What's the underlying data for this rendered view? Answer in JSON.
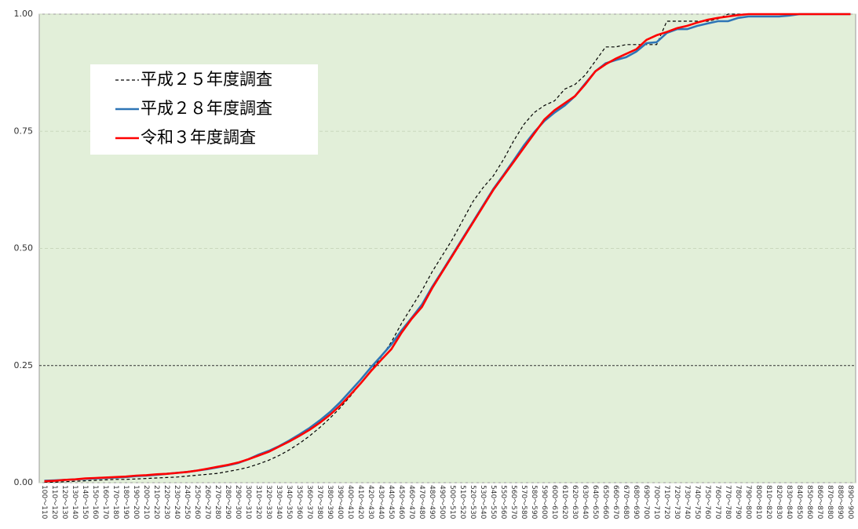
{
  "chart_data": {
    "type": "line",
    "categories": [
      "100～110",
      "110～120",
      "120～130",
      "130～140",
      "140～150",
      "150～160",
      "160～170",
      "170～180",
      "180～190",
      "190～200",
      "200～210",
      "210～220",
      "220～230",
      "230～240",
      "240～250",
      "250～260",
      "260～270",
      "270～280",
      "280～290",
      "290～300",
      "300～310",
      "310～320",
      "320～330",
      "330～340",
      "340～350",
      "350～360",
      "360～370",
      "370～380",
      "380～390",
      "390～400",
      "400～410",
      "410～420",
      "420～430",
      "430～440",
      "440～450",
      "450～460",
      "460～470",
      "470～480",
      "480～490",
      "490～500",
      "500～510",
      "510～520",
      "520～530",
      "530～540",
      "540～550",
      "550～560",
      "560～570",
      "570～580",
      "580～590",
      "590～600",
      "600～610",
      "610～620",
      "620～630",
      "630～640",
      "640～650",
      "650～660",
      "660～670",
      "670～680",
      "680～690",
      "690～700",
      "700～710",
      "710～720",
      "720～730",
      "730～740",
      "740～750",
      "750～760",
      "760～770",
      "770～780",
      "780～790",
      "790～800",
      "800～810",
      "810～820",
      "820～830",
      "830～840",
      "840～850",
      "850～860",
      "860～870",
      "870～880",
      "880～890",
      "890～900"
    ],
    "series": [
      {
        "name": "平成２５年度調査",
        "color": "#000000",
        "line_style": "dashed",
        "values": [
          0.001,
          0.001,
          0.002,
          0.003,
          0.004,
          0.005,
          0.006,
          0.007,
          0.007,
          0.008,
          0.009,
          0.01,
          0.011,
          0.012,
          0.014,
          0.016,
          0.018,
          0.02,
          0.024,
          0.028,
          0.033,
          0.04,
          0.048,
          0.058,
          0.07,
          0.084,
          0.1,
          0.118,
          0.138,
          0.16,
          0.185,
          0.212,
          0.24,
          0.268,
          0.3,
          0.34,
          0.375,
          0.41,
          0.45,
          0.485,
          0.52,
          0.56,
          0.6,
          0.63,
          0.655,
          0.69,
          0.73,
          0.765,
          0.79,
          0.805,
          0.815,
          0.84,
          0.85,
          0.87,
          0.9,
          0.93,
          0.93,
          0.935,
          0.935,
          0.935,
          0.935,
          0.985,
          0.985,
          0.985,
          0.985,
          0.985,
          0.99,
          1,
          1,
          1,
          1,
          1,
          1,
          1,
          1,
          1,
          1,
          1,
          1,
          1
        ]
      },
      {
        "name": "平成２８年度調査",
        "color": "#2e75b6",
        "line_style": "solid",
        "values": [
          0.004,
          0.005,
          0.006,
          0.007,
          0.008,
          0.009,
          0.01,
          0.011,
          0.012,
          0.014,
          0.015,
          0.017,
          0.019,
          0.021,
          0.023,
          0.026,
          0.029,
          0.033,
          0.037,
          0.042,
          0.05,
          0.06,
          0.068,
          0.078,
          0.09,
          0.103,
          0.117,
          0.133,
          0.151,
          0.172,
          0.196,
          0.22,
          0.246,
          0.27,
          0.295,
          0.325,
          0.352,
          0.38,
          0.418,
          0.452,
          0.487,
          0.522,
          0.557,
          0.592,
          0.627,
          0.657,
          0.688,
          0.72,
          0.748,
          0.772,
          0.79,
          0.805,
          0.825,
          0.852,
          0.878,
          0.895,
          0.902,
          0.908,
          0.92,
          0.938,
          0.94,
          0.96,
          0.968,
          0.968,
          0.975,
          0.98,
          0.985,
          0.985,
          0.992,
          0.995,
          0.995,
          0.995,
          0.995,
          0.997,
          1,
          1,
          1,
          1,
          1,
          1
        ]
      },
      {
        "name": "令和３年度調査",
        "color": "#ff0000",
        "line_style": "solid",
        "values": [
          0.003,
          0.004,
          0.006,
          0.007,
          0.009,
          0.01,
          0.011,
          0.012,
          0.013,
          0.015,
          0.016,
          0.018,
          0.019,
          0.021,
          0.023,
          0.026,
          0.03,
          0.034,
          0.038,
          0.043,
          0.05,
          0.058,
          0.066,
          0.077,
          0.088,
          0.1,
          0.113,
          0.128,
          0.145,
          0.165,
          0.188,
          0.212,
          0.238,
          0.262,
          0.285,
          0.32,
          0.35,
          0.375,
          0.415,
          0.45,
          0.485,
          0.52,
          0.555,
          0.59,
          0.625,
          0.655,
          0.685,
          0.715,
          0.745,
          0.775,
          0.795,
          0.81,
          0.825,
          0.85,
          0.878,
          0.893,
          0.905,
          0.915,
          0.925,
          0.945,
          0.955,
          0.962,
          0.97,
          0.975,
          0.982,
          0.988,
          0.992,
          0.995,
          0.998,
          1,
          1,
          1,
          1,
          1,
          1,
          1,
          1,
          1,
          1,
          1
        ]
      }
    ],
    "ylim": [
      0,
      1
    ],
    "yticks": [
      {
        "value": 0,
        "label": "0.00"
      },
      {
        "value": 0.25,
        "label": "0.25"
      },
      {
        "value": 0.5,
        "label": "0.50"
      },
      {
        "value": 0.75,
        "label": "0.75"
      },
      {
        "value": 1,
        "label": "1.00"
      }
    ],
    "grid": true,
    "legend": "upper left",
    "background": "#e2efd9"
  }
}
